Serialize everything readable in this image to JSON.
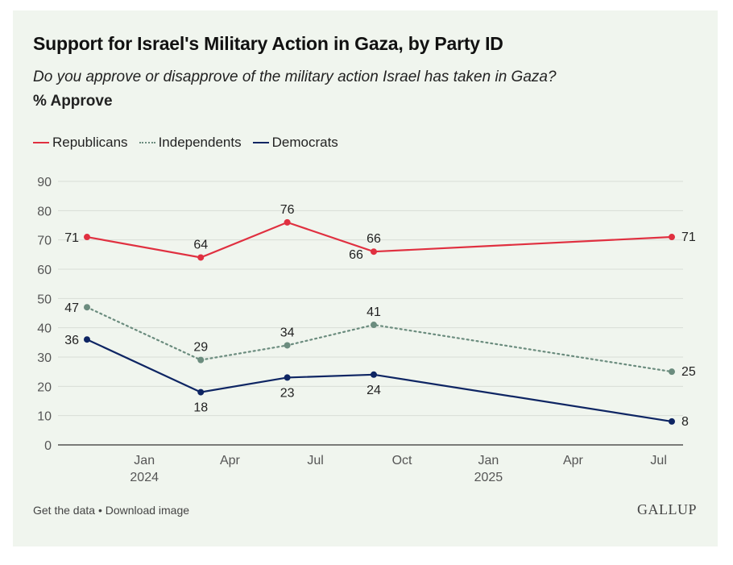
{
  "header": {
    "title": "Support for Israel's Military Action in Gaza, by Party ID",
    "subtitle": "Do you approve or disapprove of the military action Israel has taken in Gaza?",
    "measure": "% Approve"
  },
  "footer": {
    "get_data": "Get the data",
    "separator": " • ",
    "download": "Download image",
    "logo": "GALLUP"
  },
  "colors": {
    "background": "#f0f5ee",
    "republicans": "#e03040",
    "independents": "#6b8c7e",
    "democrats": "#0e2563",
    "grid": "#d8ddd6",
    "axis": "#333333",
    "tick_text": "#555555"
  },
  "chart_data": {
    "type": "line",
    "ylim": [
      0,
      90
    ],
    "yticks": [
      0,
      10,
      20,
      30,
      40,
      50,
      60,
      70,
      80,
      90
    ],
    "xlim": [
      "2023-11-01",
      "2025-07-15"
    ],
    "xticks": [
      {
        "date": "2024-01-01",
        "label": "Jan",
        "year": "2024"
      },
      {
        "date": "2024-04-01",
        "label": "Apr",
        "year": ""
      },
      {
        "date": "2024-07-01",
        "label": "Jul",
        "year": ""
      },
      {
        "date": "2024-10-01",
        "label": "Oct",
        "year": ""
      },
      {
        "date": "2025-01-01",
        "label": "Jan",
        "year": "2025"
      },
      {
        "date": "2025-04-01",
        "label": "Apr",
        "year": ""
      },
      {
        "date": "2025-07-01",
        "label": "Jul",
        "year": ""
      }
    ],
    "grid": true,
    "legend_position": "top-left",
    "series": [
      {
        "name": "Republicans",
        "color": "#e03040",
        "style": "solid",
        "points": [
          {
            "x": "2023-11-01",
            "y": 71,
            "label_pos": "left"
          },
          {
            "x": "2024-03-01",
            "y": 64,
            "label_pos": "above"
          },
          {
            "x": "2024-06-01",
            "y": 76,
            "label_pos": "above"
          },
          {
            "x": "2024-09-01",
            "y": 66,
            "label_pos": "above"
          },
          {
            "x": "2025-07-15",
            "y": 71,
            "label_pos": "right"
          }
        ]
      },
      {
        "name": "Independents",
        "color": "#6b8c7e",
        "style": "dotted",
        "points": [
          {
            "x": "2023-11-01",
            "y": 47,
            "label_pos": "left"
          },
          {
            "x": "2024-03-01",
            "y": 29,
            "label_pos": "above"
          },
          {
            "x": "2024-06-01",
            "y": 34,
            "label_pos": "above"
          },
          {
            "x": "2024-09-01",
            "y": 41,
            "label_pos": "above"
          },
          {
            "x": "2025-07-15",
            "y": 25,
            "label_pos": "right"
          }
        ]
      },
      {
        "name": "Democrats",
        "color": "#0e2563",
        "style": "solid",
        "points": [
          {
            "x": "2023-11-01",
            "y": 36,
            "label_pos": "left"
          },
          {
            "x": "2024-03-01",
            "y": 18,
            "label_pos": "below"
          },
          {
            "x": "2024-06-01",
            "y": 23,
            "label_pos": "below"
          },
          {
            "x": "2024-09-01",
            "y": 24,
            "label_pos": "below"
          },
          {
            "x": "2025-07-15",
            "y": 8,
            "label_pos": "right"
          }
        ]
      }
    ],
    "extra_labels": [
      {
        "series": "Republicans",
        "x": "2024-09-01",
        "y": 66,
        "text": "66",
        "label_pos": "below-left"
      }
    ]
  }
}
